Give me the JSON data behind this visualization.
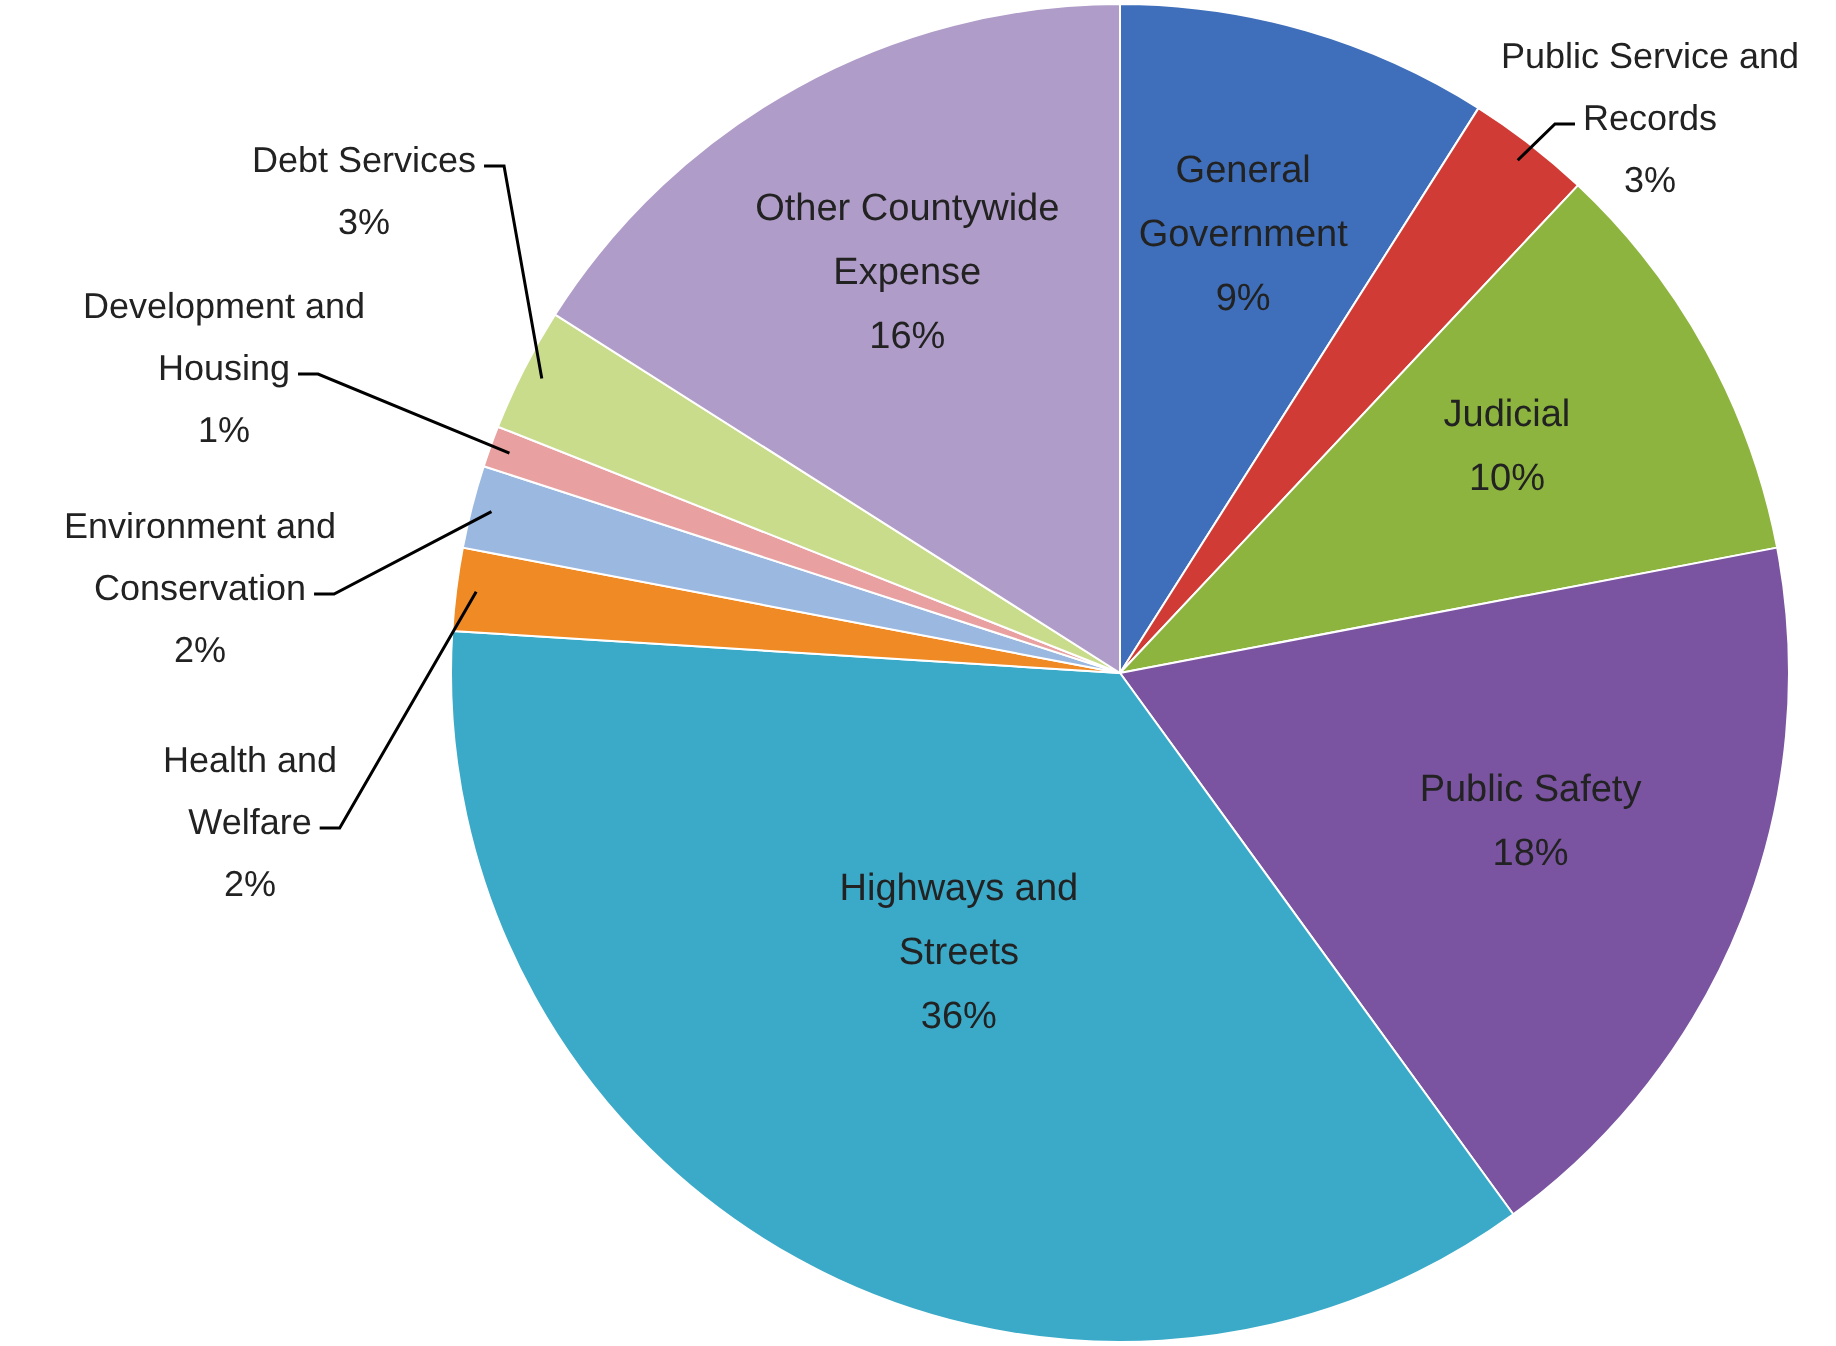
{
  "chart_data": {
    "type": "pie",
    "categories": [
      "General Government",
      "Public Service and Records",
      "Judicial",
      "Public Safety",
      "Highways and Streets",
      "Health and Welfare",
      "Environment and Conservation",
      "Development and Housing",
      "Debt Services",
      "Other Countywide Expense"
    ],
    "values": [
      9,
      3,
      10,
      18,
      36,
      2,
      2,
      1,
      3,
      16
    ],
    "value_labels": [
      "9%",
      "3%",
      "10%",
      "18%",
      "36%",
      "2%",
      "2%",
      "1%",
      "3%",
      "16%"
    ],
    "colors": [
      "#3f6fba",
      "#d03c35",
      "#8db43e",
      "#7a54a0",
      "#3aaac8",
      "#f08a24",
      "#9ab8e0",
      "#e8a0a0",
      "#c8dc8c",
      "#b09cc8"
    ],
    "legend": false
  }
}
